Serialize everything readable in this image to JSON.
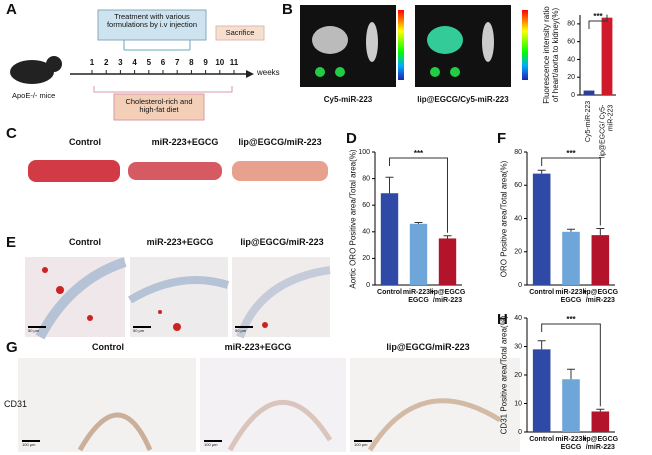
{
  "panel_labels": [
    "A",
    "B",
    "C",
    "D",
    "E",
    "F",
    "G",
    "H"
  ],
  "timeline": {
    "treatment": "Treatment with various formulations by i.v injection",
    "sacrifice": "Sacrifice",
    "diet": "Cholesterol-rich and high-fat diet",
    "mouse": "ApoE-/- mice",
    "unit": "weeks",
    "weeks": [
      1,
      2,
      3,
      4,
      5,
      6,
      7,
      8,
      9,
      10,
      11
    ]
  },
  "imaging": {
    "captions": [
      "Cy5-miR-223",
      "lip@EGCG/Cy5-miR-223"
    ]
  },
  "groups": [
    "Control",
    "miR-223+EGCG",
    "lip@EGCG/miR-223"
  ],
  "scale_bars": [
    "50 μm",
    "50 μm",
    "50 μm",
    "100 μm",
    "100 μm",
    "100 μm"
  ],
  "stain": "CD31",
  "chart_data": [
    {
      "type": "bar",
      "ylabel": "Fluorescence intensity ratio of heart/aorta to kidney(%)",
      "categories": [
        "Cy5-miR-223",
        "lip@EGCG/ Cy5-miR-223"
      ],
      "values": [
        5,
        87
      ],
      "colors": [
        "#2c3f97",
        "#cf1a2b"
      ],
      "ylim": [
        0,
        90
      ],
      "yticks": [
        0,
        20,
        40,
        60,
        80
      ],
      "annotation": "***"
    },
    {
      "type": "bar",
      "ylabel": "Aortic ORO Positive area/Total area(%)",
      "categories": [
        "Control",
        "miR-223+ EGCG",
        "lip@EGCG /miR-223"
      ],
      "values": [
        69,
        46,
        35
      ],
      "errors": [
        12,
        1,
        2
      ],
      "colors": [
        "#2f4aa6",
        "#6fa6d9",
        "#b3142b"
      ],
      "ylim": [
        0,
        100
      ],
      "yticks": [
        0,
        20,
        40,
        60,
        80,
        100
      ],
      "annotation": "***"
    },
    {
      "type": "bar",
      "ylabel": "ORO Positive area/Total area(%)",
      "categories": [
        "Control",
        "miR-223+ EGCG",
        "lip@EGCG /miR-223"
      ],
      "values": [
        67,
        32,
        30
      ],
      "errors": [
        2,
        1.5,
        4
      ],
      "colors": [
        "#2f4aa6",
        "#6fa6d9",
        "#b3142b"
      ],
      "ylim": [
        0,
        80
      ],
      "yticks": [
        0,
        20,
        40,
        60,
        80
      ],
      "annotation": "***"
    },
    {
      "type": "bar",
      "ylabel": "CD31 Positive area/Total area(%)",
      "categories": [
        "Control",
        "miR-223+ EGCG",
        "lip@EGCG /miR-223"
      ],
      "values": [
        29,
        18.5,
        7.2
      ],
      "errors": [
        3,
        3.5,
        0.8
      ],
      "colors": [
        "#2f4aa6",
        "#6fa6d9",
        "#b3142b"
      ],
      "ylim": [
        0,
        40
      ],
      "yticks": [
        0,
        10,
        20,
        30,
        40
      ],
      "annotation": "***"
    }
  ]
}
